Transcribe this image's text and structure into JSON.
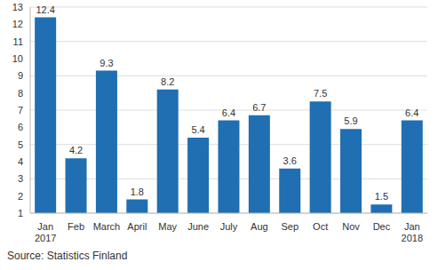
{
  "chart_data": {
    "type": "bar",
    "categories": [
      "Jan 2017",
      "Feb",
      "March",
      "April",
      "May",
      "June",
      "July",
      "Aug",
      "Sep",
      "Oct",
      "Nov",
      "Dec",
      "Jan 2018"
    ],
    "values": [
      12.4,
      4.2,
      9.3,
      1.8,
      8.2,
      5.4,
      6.4,
      6.7,
      3.6,
      7.5,
      5.9,
      1.5,
      6.4
    ],
    "color": "#1f6fb2",
    "ylim": [
      1,
      13
    ],
    "yticks": [
      1,
      2,
      3,
      4,
      5,
      6,
      7,
      8,
      9,
      10,
      11,
      12,
      13
    ],
    "grid": true,
    "data_labels": true,
    "source": "Source: Statistics Finland"
  }
}
